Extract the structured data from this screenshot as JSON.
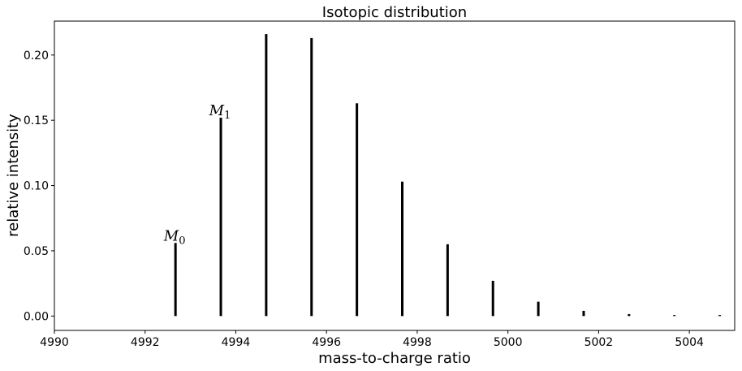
{
  "chart_data": {
    "type": "bar",
    "title": "Isotopic distribution",
    "xlabel": "mass-to-charge ratio",
    "ylabel": "relative intensity",
    "xlim": [
      4990,
      5005
    ],
    "ylim": [
      -0.011,
      0.226
    ],
    "xticks": [
      4990,
      4992,
      4994,
      4996,
      4998,
      5000,
      5002,
      5004
    ],
    "xtick_labels": [
      "4990",
      "4992",
      "4994",
      "4996",
      "4998",
      "5000",
      "5002",
      "5004"
    ],
    "yticks": [
      0.0,
      0.05,
      0.1,
      0.15,
      0.2
    ],
    "ytick_labels": [
      "0.00",
      "0.05",
      "0.10",
      "0.15",
      "0.20"
    ],
    "grid": false,
    "legend": "none",
    "bar_color": "#000000",
    "x": [
      4992.67,
      4993.67,
      4994.67,
      4995.67,
      4996.67,
      4997.67,
      4998.67,
      4999.67,
      5000.67,
      5001.67,
      5002.67,
      5003.67,
      5004.67
    ],
    "values": [
      0.056,
      0.152,
      0.216,
      0.213,
      0.163,
      0.103,
      0.055,
      0.027,
      0.011,
      0.004,
      0.0015,
      0.0005,
      0.0002
    ],
    "annotations": [
      {
        "base": "M",
        "sub": "0",
        "x": 4992.67,
        "y": 0.056
      },
      {
        "base": "M",
        "sub": "1",
        "x": 4993.67,
        "y": 0.152
      }
    ]
  }
}
